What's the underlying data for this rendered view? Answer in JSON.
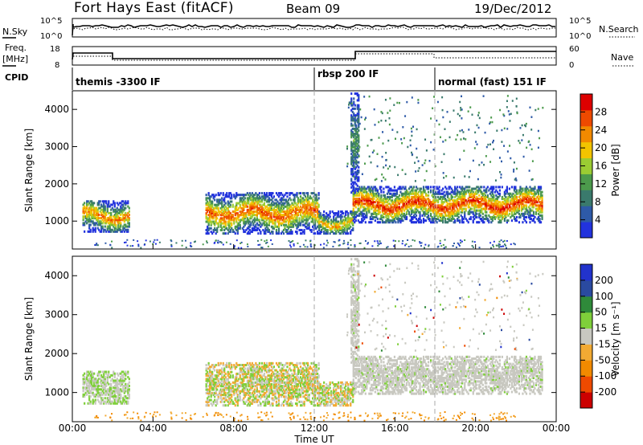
{
  "header": {
    "site": "Fort Hays East (fitACF)",
    "beam": "Beam 09",
    "date": "19/Dec/2012"
  },
  "strips": {
    "sky_label": "N.Sky",
    "sky_ticks": [
      "10^5",
      "10^0"
    ],
    "search_label": "N.Search",
    "search_ticks": [
      "10^5",
      "10^0"
    ],
    "freq_label_1": "Freq.",
    "freq_label_2": "[MHz]",
    "freq_ticks": [
      "18",
      "8"
    ],
    "nave_label": "Nave",
    "nave_ticks": [
      "60",
      "0"
    ],
    "cpid_label": "CPID",
    "cpid_segments": [
      "themis -3300 IF",
      "rbsp 200 IF",
      "normal (fast) 151 IF"
    ]
  },
  "colors": {
    "power_scale": [
      "#2233dd",
      "#2e5aa8",
      "#3a7a6c",
      "#4c9a4c",
      "#9bcc33",
      "#f2c400",
      "#f28a00",
      "#ee4a00",
      "#dd0000"
    ],
    "velocity_scale": [
      "#cc0000",
      "#ee4a00",
      "#f28a00",
      "#f2aa33",
      "#c8c8c0",
      "#7fcf3a",
      "#2f8a3a",
      "#2a4aa0",
      "#2233cc"
    ],
    "gate_line": "#bbbbbb"
  },
  "chart_data": [
    {
      "type": "heatmap",
      "title": "",
      "xlabel": "Time UT",
      "ylabel": "Slant Range [km]",
      "x_ticks": [
        "00:00",
        "04:00",
        "08:00",
        "12:00",
        "16:00",
        "20:00",
        "00:00"
      ],
      "xlim_hours": [
        0,
        24
      ],
      "ylim_km": [
        250,
        4500
      ],
      "y_ticks": [
        "1000",
        "2000",
        "3000",
        "4000"
      ],
      "colorbar": {
        "label": "Power [dB]",
        "ticks": [
          "4",
          "8",
          "12",
          "16",
          "20",
          "24",
          "28"
        ],
        "range": [
          0,
          30
        ]
      },
      "regions": [
        {
          "t_start": 0.5,
          "t_end": 2.8,
          "range_low": 750,
          "range_high": 1600,
          "peak_db": 26
        },
        {
          "t_start": 6.6,
          "t_end": 12.2,
          "range_low": 700,
          "range_high": 1800,
          "peak_db": 28
        },
        {
          "t_start": 12.2,
          "t_end": 13.9,
          "range_low": 700,
          "range_high": 1300,
          "peak_db": 24
        },
        {
          "t_start": 13.9,
          "t_end": 23.3,
          "range_low": 1000,
          "range_high": 1950,
          "peak_db": 30
        },
        {
          "t_start": 13.8,
          "t_end": 14.2,
          "range_low": 1800,
          "range_high": 4500,
          "peak_db": 14
        }
      ]
    },
    {
      "type": "heatmap",
      "title": "",
      "xlabel": "Time UT",
      "ylabel": "Slant Range [km]",
      "x_ticks": [
        "00:00",
        "04:00",
        "08:00",
        "12:00",
        "16:00",
        "20:00",
        "00:00"
      ],
      "xlim_hours": [
        0,
        24
      ],
      "ylim_km": [
        250,
        4500
      ],
      "y_ticks": [
        "1000",
        "2000",
        "3000",
        "4000"
      ],
      "colorbar": {
        "label": "Velocity [m s⁻¹]",
        "ticks": [
          "200",
          "100",
          "50",
          "15",
          "-15",
          "-50",
          "-100",
          "-200"
        ],
        "range": [
          -250,
          250
        ]
      },
      "regions": [
        {
          "t_start": 0.5,
          "t_end": 2.8,
          "range_low": 750,
          "range_high": 1600,
          "dominant": "ground scatter / +50"
        },
        {
          "t_start": 6.6,
          "t_end": 12.2,
          "range_low": 700,
          "range_high": 1800,
          "dominant": "+15 to +50 / -15 to -50"
        },
        {
          "t_start": 13.9,
          "t_end": 23.3,
          "range_low": 1000,
          "range_high": 1950,
          "dominant": "ground scatter"
        }
      ]
    }
  ]
}
